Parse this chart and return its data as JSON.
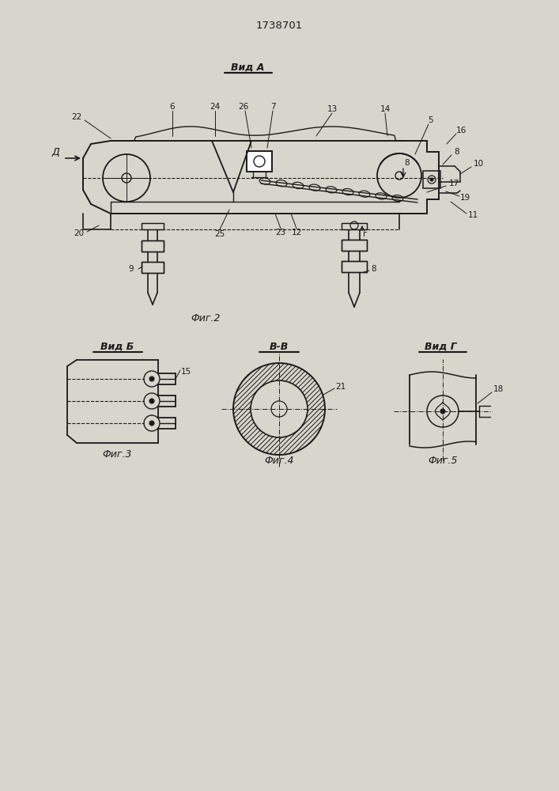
{
  "title": "1738701",
  "bg_color": "#d8d5cc",
  "line_color": "#1a1a1a",
  "fig2_label": "Вид А",
  "fig2_caption": "Фиг.2",
  "fig3_label": "Вид Б",
  "fig3_caption": "Фиг.3",
  "fig4_label": "В-В",
  "fig4_caption": "Фиг.4",
  "fig5_label": "Вид Г",
  "fig5_caption": "Фиг.5"
}
